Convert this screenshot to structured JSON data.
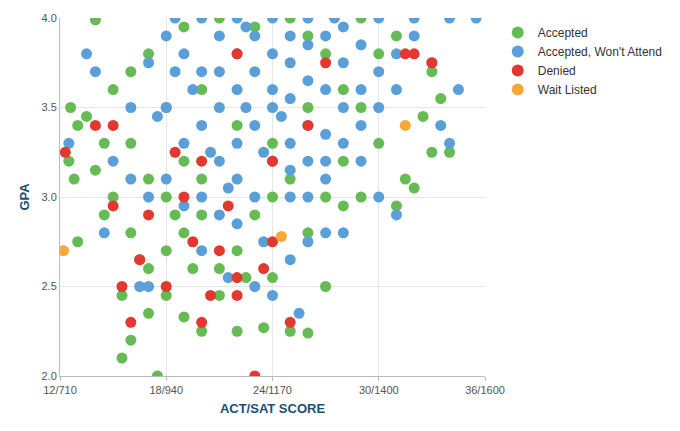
{
  "chart_data": {
    "type": "scatter",
    "x_label": "ACT/SAT SCORE",
    "y_label": "GPA",
    "xlim": [
      12,
      36
    ],
    "ylim": [
      2,
      4
    ],
    "xticks": [
      {
        "value": 12,
        "label": "12/710"
      },
      {
        "value": 18,
        "label": "18/940"
      },
      {
        "value": 24,
        "label": "24/1170"
      },
      {
        "value": 30,
        "label": "30/1400"
      },
      {
        "value": 36,
        "label": "36/1600"
      }
    ],
    "yticks": [
      {
        "value": 2,
        "label": "2.0"
      },
      2.5,
      {
        "value": 3,
        "label": "3.0"
      },
      3.5,
      {
        "value": 4,
        "label": "4.0"
      }
    ],
    "grid": true,
    "legend": "right",
    "marker": "circle",
    "series": [
      {
        "name": "Accepted",
        "color": "#66bb55",
        "x": [
          12.6,
          12.5,
          12.8,
          13,
          14,
          13.5,
          14.5,
          15.5,
          16,
          17.5,
          17,
          18,
          19,
          20,
          22,
          23.5,
          25,
          26,
          24,
          27,
          28,
          29,
          31,
          32,
          33,
          33.5,
          33,
          32.5,
          30,
          29,
          28,
          27,
          26,
          25,
          23,
          21,
          19,
          17,
          16,
          15,
          14.5,
          15,
          16,
          17,
          18,
          19,
          20,
          21,
          22,
          23,
          24,
          25,
          26,
          27,
          20,
          19,
          18,
          17,
          16,
          18,
          20,
          22,
          24,
          26,
          28,
          30,
          31,
          29,
          21,
          22.5,
          19.5,
          18.5,
          16.5,
          15.5,
          14,
          13,
          34,
          31.5
        ],
        "y": [
          3.5,
          3.2,
          3.1,
          2.75,
          3.99,
          3.45,
          2.9,
          2.1,
          2.2,
          2.0,
          2.35,
          2.45,
          2.33,
          2.25,
          2.25,
          2.27,
          2.25,
          2.24,
          2.55,
          2.5,
          2.95,
          3.0,
          2.95,
          3.05,
          3.25,
          3.55,
          3.7,
          3.45,
          3.3,
          3.5,
          3.6,
          3.8,
          3.9,
          4.0,
          3.95,
          4.0,
          3.95,
          3.8,
          3.7,
          3.6,
          3.3,
          3.0,
          2.8,
          2.6,
          2.7,
          2.8,
          2.9,
          2.6,
          2.7,
          2.9,
          3.0,
          3.1,
          2.8,
          3.0,
          3.1,
          3.2,
          3.0,
          3.1,
          3.3,
          3.5,
          3.6,
          3.4,
          3.3,
          3.5,
          3.2,
          3.8,
          3.9,
          4.0,
          2.45,
          2.55,
          2.6,
          2.9,
          2.65,
          2.45,
          3.15,
          3.4,
          3.25,
          3.1
        ]
      },
      {
        "name": "Accepted, Won't Attend",
        "color": "#5b9fd8",
        "x": [
          12.5,
          13.5,
          14,
          14.5,
          15,
          16,
          16.5,
          17,
          17.5,
          18,
          18,
          19,
          19,
          20,
          20,
          20,
          20,
          21,
          21,
          21,
          22,
          22,
          22,
          22,
          22,
          23,
          23,
          23,
          23,
          24,
          24,
          24,
          24,
          24,
          25,
          25,
          25,
          25,
          25,
          26,
          26,
          26,
          26,
          26,
          27,
          27,
          27,
          27,
          28,
          28,
          28,
          28,
          29,
          29,
          29,
          30,
          30,
          30,
          31,
          31,
          32,
          32,
          33,
          34,
          35.5,
          34.5,
          33.5,
          34,
          31,
          30,
          28,
          27,
          26,
          25,
          24,
          25.5,
          23.5,
          22,
          21,
          19,
          18,
          17,
          21.5,
          22.5,
          23.5,
          24.5,
          20.5,
          19.5,
          18.5,
          21,
          25,
          26,
          27,
          29,
          20,
          21.5,
          23,
          16,
          17,
          18.5,
          22.5,
          27.5
        ],
        "y": [
          3.3,
          3.8,
          3.7,
          2.8,
          3.2,
          3.1,
          2.5,
          2.5,
          3.45,
          3.5,
          3.9,
          3.8,
          3.3,
          3.0,
          3.4,
          3.7,
          4.0,
          3.2,
          3.5,
          3.9,
          3.1,
          3.3,
          3.6,
          3.8,
          4.0,
          3.0,
          3.4,
          3.7,
          3.9,
          3.2,
          3.5,
          3.6,
          3.8,
          4.0,
          3.0,
          3.3,
          3.55,
          3.75,
          3.9,
          3.2,
          3.4,
          3.65,
          3.85,
          4.0,
          3.1,
          3.35,
          3.6,
          3.9,
          3.3,
          3.5,
          3.75,
          3.95,
          3.2,
          3.6,
          3.85,
          3.5,
          3.7,
          4.0,
          3.6,
          3.8,
          3.9,
          4.0,
          3.75,
          4.0,
          4.0,
          3.6,
          3.4,
          3.3,
          2.9,
          3.0,
          2.8,
          2.8,
          2.75,
          2.65,
          2.45,
          2.35,
          2.75,
          2.85,
          2.9,
          2.95,
          3.1,
          3.0,
          3.05,
          3.5,
          3.25,
          3.45,
          3.25,
          3.6,
          3.7,
          3.7,
          3.15,
          3.0,
          3.2,
          3.4,
          2.7,
          2.55,
          2.5,
          3.5,
          3.75,
          4.0,
          3.95,
          4.0
        ]
      },
      {
        "name": "Denied",
        "color": "#e2382f",
        "x": [
          12.3,
          14,
          15,
          15,
          15.5,
          16,
          16.5,
          17,
          18,
          19,
          19.5,
          20,
          20.5,
          21,
          21.5,
          22,
          22,
          23,
          23.5,
          25,
          20,
          22,
          24,
          26,
          27,
          31.5,
          32,
          33,
          24,
          18.5
        ],
        "y": [
          3.25,
          3.4,
          3.4,
          2.95,
          2.5,
          2.3,
          2.65,
          2.9,
          2.5,
          3.0,
          2.75,
          2.3,
          2.45,
          2.7,
          2.95,
          2.55,
          2.45,
          2.0,
          2.6,
          2.3,
          3.2,
          3.8,
          3.2,
          3.4,
          3.75,
          3.8,
          3.8,
          3.75,
          2.75,
          3.25
        ]
      },
      {
        "name": "Wait Listed",
        "color": "#f5a93a",
        "x": [
          12.2,
          24.5,
          31.5
        ],
        "y": [
          2.7,
          2.78,
          3.4
        ]
      }
    ]
  }
}
